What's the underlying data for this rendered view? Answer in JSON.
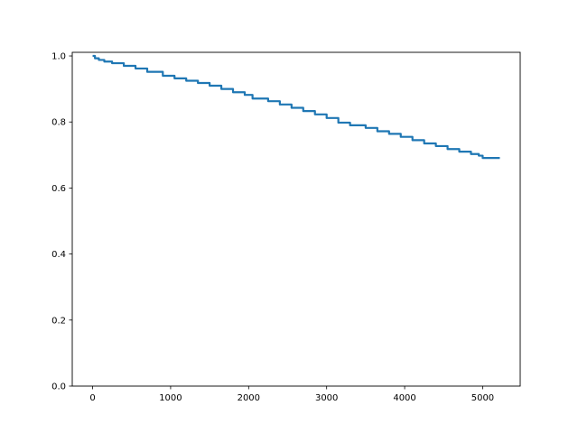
{
  "chart_data": {
    "type": "line",
    "title": "",
    "xlabel": "",
    "ylabel": "",
    "xlim": [
      -261,
      5481
    ],
    "ylim": [
      0.0,
      1.011
    ],
    "xticks": [
      "0",
      "1000",
      "2000",
      "3000",
      "4000",
      "5000"
    ],
    "xtick_values": [
      0,
      1000,
      2000,
      3000,
      4000,
      5000
    ],
    "yticks": [
      "0.0",
      "0.2",
      "0.4",
      "0.6",
      "0.8",
      "1.0"
    ],
    "ytick_values": [
      0.0,
      0.2,
      0.4,
      0.6,
      0.8,
      1.0
    ],
    "grid": false,
    "drawstyle": "steps-post",
    "color": "#1f77b4",
    "series": [
      {
        "x": [
          0,
          30,
          80,
          150,
          250,
          400,
          550,
          700,
          900,
          1050,
          1200,
          1350,
          1500,
          1650,
          1800,
          1950,
          2050,
          2250,
          2400,
          2550,
          2700,
          2850,
          3000,
          3150,
          3300,
          3500,
          3650,
          3800,
          3950,
          4100,
          4250,
          4400,
          4550,
          4700,
          4850,
          4950,
          5000,
          5220
        ],
        "y": [
          1.0,
          0.993,
          0.988,
          0.983,
          0.978,
          0.97,
          0.962,
          0.952,
          0.94,
          0.932,
          0.925,
          0.918,
          0.91,
          0.9,
          0.89,
          0.882,
          0.871,
          0.863,
          0.853,
          0.843,
          0.833,
          0.823,
          0.812,
          0.798,
          0.79,
          0.782,
          0.772,
          0.764,
          0.755,
          0.745,
          0.735,
          0.727,
          0.718,
          0.71,
          0.703,
          0.698,
          0.691,
          0.691
        ]
      }
    ]
  }
}
